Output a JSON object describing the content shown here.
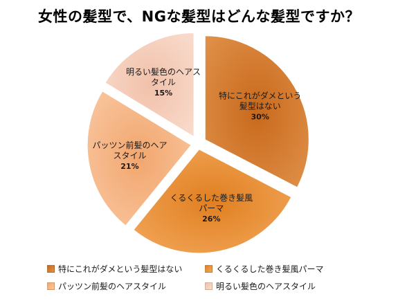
{
  "chart_data": {
    "type": "pie",
    "title": "女性の髪型で、NGな髪型はどんな髪型ですか？",
    "slices": [
      {
        "label_lines": [
          "特にこれがダメという",
          "髪型はない"
        ],
        "legend": "特にこれがダメという髪型はない",
        "value": 30,
        "value_label": "30%",
        "color": "#c8691c",
        "color_light": "#e0914a"
      },
      {
        "label_lines": [
          "くるくるした巻き髪風",
          "パーマ"
        ],
        "legend": "くるくるした巻き髪風パーマ",
        "value": 26,
        "value_label": "26%",
        "color": "#e07f20",
        "color_light": "#f3a85c"
      },
      {
        "label_lines": [
          "パッツン前髪のヘア",
          "スタイル"
        ],
        "legend": "パッツン前髪のヘアスタイル",
        "value": 21,
        "value_label": "21%",
        "color": "#f2a66e",
        "color_light": "#f9c8a2"
      },
      {
        "label_lines": [
          "明るい髪色のヘアス",
          "タイル"
        ],
        "legend": "明るい髪色のヘアスタイル",
        "value": 15,
        "value_label": "15%",
        "color": "#f1c1aa",
        "color_light": "#f9dccd"
      }
    ],
    "legend_position": "bottom"
  }
}
